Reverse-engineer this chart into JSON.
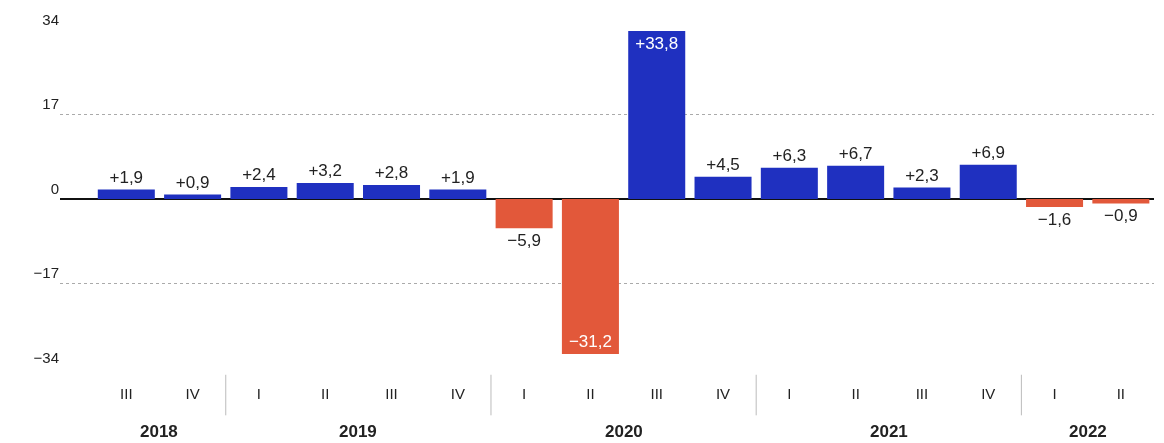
{
  "chart_data": {
    "type": "bar",
    "categories": [
      "III",
      "IV",
      "I",
      "II",
      "III",
      "IV",
      "I",
      "II",
      "III",
      "IV",
      "I",
      "II",
      "III",
      "IV",
      "I",
      "II"
    ],
    "values": [
      1.9,
      0.9,
      2.4,
      3.2,
      2.8,
      1.9,
      -5.9,
      -31.2,
      33.8,
      4.5,
      6.3,
      6.7,
      2.3,
      6.9,
      -1.6,
      -0.9
    ],
    "value_labels": [
      "+1,9",
      "+0,9",
      "+2,4",
      "+3,2",
      "+2,8",
      "+1,9",
      "−5,9",
      "−31,2",
      "+33,8",
      "+4,5",
      "+6,3",
      "+6,7",
      "+2,3",
      "+6,9",
      "−1,6",
      "−0,9"
    ],
    "colors": [
      "#1f30c0",
      "#1f30c0",
      "#1f30c0",
      "#1f30c0",
      "#1f30c0",
      "#1f30c0",
      "#e2583a",
      "#e2583a",
      "#1f30c0",
      "#1f30c0",
      "#1f30c0",
      "#1f30c0",
      "#1f30c0",
      "#1f30c0",
      "#e2583a",
      "#e2583a"
    ],
    "annotations": [
      "2018",
      "2019",
      "2020",
      "2021",
      "2022"
    ],
    "ylim": [
      -34,
      34
    ],
    "yticks": [
      -34,
      -17,
      0,
      17,
      34
    ],
    "grid": "y",
    "legend": false
  }
}
